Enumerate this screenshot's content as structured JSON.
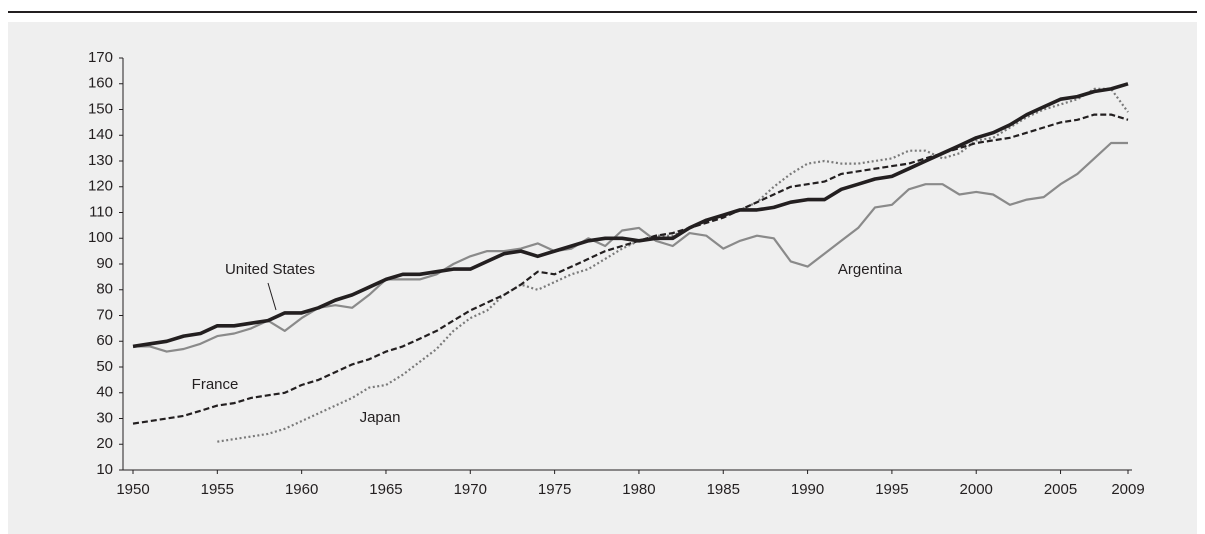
{
  "chart_data": {
    "type": "line",
    "x": [
      1950,
      1951,
      1952,
      1953,
      1954,
      1955,
      1956,
      1957,
      1958,
      1959,
      1960,
      1961,
      1962,
      1963,
      1964,
      1965,
      1966,
      1967,
      1968,
      1969,
      1970,
      1971,
      1972,
      1973,
      1974,
      1975,
      1976,
      1977,
      1978,
      1979,
      1980,
      1981,
      1982,
      1983,
      1984,
      1985,
      1986,
      1987,
      1988,
      1989,
      1990,
      1991,
      1992,
      1993,
      1994,
      1995,
      1996,
      1997,
      1998,
      1999,
      2000,
      2001,
      2002,
      2003,
      2004,
      2005,
      2006,
      2007,
      2008,
      2009
    ],
    "series": [
      {
        "name": "United States",
        "color": "#231f20",
        "style": "solid",
        "values": [
          58,
          59,
          60,
          62,
          63,
          66,
          66,
          67,
          68,
          71,
          71,
          73,
          76,
          78,
          81,
          84,
          86,
          86,
          87,
          88,
          88,
          91,
          94,
          95,
          93,
          95,
          97,
          99,
          100,
          100,
          99,
          100,
          100,
          104,
          107,
          109,
          111,
          111,
          112,
          114,
          115,
          115,
          119,
          121,
          123,
          124,
          127,
          130,
          133,
          136,
          139,
          141,
          144,
          148,
          151,
          154,
          155,
          157,
          158,
          160
        ]
      },
      {
        "name": "Argentina",
        "color": "#8a8a8a",
        "style": "solid",
        "values": [
          58,
          58,
          56,
          57,
          59,
          62,
          63,
          65,
          68,
          64,
          69,
          73,
          74,
          73,
          78,
          84,
          84,
          84,
          86,
          90,
          93,
          95,
          95,
          96,
          98,
          95,
          96,
          100,
          97,
          103,
          104,
          99,
          97,
          102,
          101,
          96,
          99,
          101,
          100,
          91,
          89,
          94,
          99,
          104,
          112,
          113,
          119,
          121,
          121,
          117,
          118,
          117,
          113,
          115,
          116,
          121,
          125,
          131,
          137,
          137
        ]
      },
      {
        "name": "France",
        "color": "#231f20",
        "style": "dashed",
        "values": [
          28,
          29,
          30,
          31,
          33,
          35,
          36,
          38,
          39,
          40,
          43,
          45,
          48,
          51,
          53,
          56,
          58,
          61,
          64,
          68,
          72,
          75,
          78,
          82,
          87,
          86,
          89,
          92,
          95,
          97,
          99,
          101,
          102,
          104,
          106,
          108,
          111,
          114,
          117,
          120,
          121,
          122,
          125,
          126,
          127,
          128,
          129,
          131,
          133,
          135,
          137,
          138,
          139,
          141,
          143,
          145,
          146,
          148,
          148,
          146
        ]
      },
      {
        "name": "Japan",
        "color": "#7a7a7a",
        "style": "dotted",
        "values": [
          null,
          null,
          null,
          null,
          null,
          21,
          22,
          23,
          24,
          26,
          29,
          32,
          35,
          38,
          42,
          43,
          47,
          52,
          57,
          64,
          69,
          72,
          78,
          82,
          80,
          83,
          86,
          88,
          92,
          96,
          99,
          101,
          101,
          104,
          107,
          109,
          111,
          114,
          120,
          125,
          129,
          130,
          129,
          129,
          130,
          131,
          134,
          134,
          131,
          133,
          138,
          139,
          143,
          147,
          150,
          152,
          154,
          158,
          158,
          149
        ]
      }
    ],
    "xlim": [
      1950,
      2009
    ],
    "xticks": [
      1950,
      1955,
      1960,
      1965,
      1970,
      1975,
      1980,
      1985,
      1990,
      1995,
      2000,
      2005,
      2009
    ],
    "ylim": [
      10,
      170
    ],
    "yticks": [
      10,
      20,
      30,
      40,
      50,
      60,
      70,
      80,
      90,
      100,
      110,
      120,
      130,
      140,
      150,
      160,
      170
    ]
  }
}
